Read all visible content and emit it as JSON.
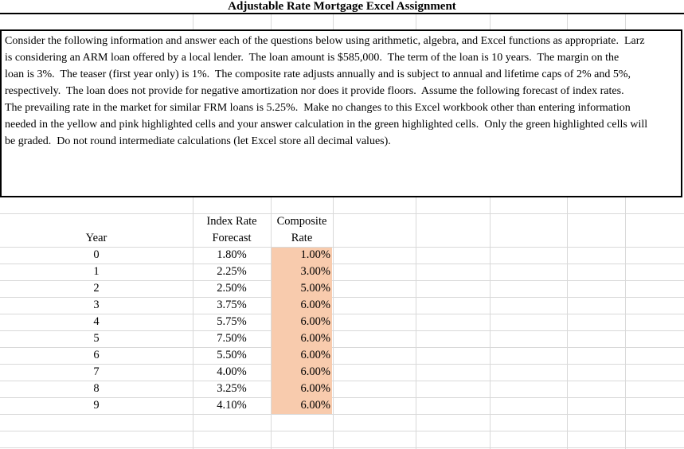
{
  "title": "Adjustable Rate Mortgage Excel Assignment",
  "instructions": {
    "lines": [
      "Consider the following information and answer each of the questions below using arithmetic, algebra, and Excel functions as appropriate.  Larz",
      "is considering an ARM loan offered by a local lender.  The loan amount is $585,000.  The term of the loan is 10 years.  The margin on the",
      "loan is 3%.  The teaser (first year only) is 1%.  The composite rate adjusts annually and is subject to annual and lifetime caps of 2% and 5%,",
      "respectively.  The loan does not provide for negative amortization nor does it provide floors.  Assume the following forecast of index rates.",
      "The prevailing rate in the market for similar FRM loans is 5.25%.  Make no changes to this Excel workbook other than entering information",
      "needed in the yellow and pink highlighted cells and your answer calculation in the green highlighted cells.  Only the green highlighted cells will",
      "be graded.  Do not round intermediate calculations (let Excel store all decimal values)."
    ]
  },
  "table": {
    "headers": {
      "year": "Year",
      "index_rate_line1": "Index Rate",
      "index_rate_line2": "Forecast",
      "composite_line1": "Composite",
      "composite_line2": "Rate"
    },
    "rows": [
      {
        "year": "0",
        "index_rate": "1.80%",
        "composite_rate": "1.00%"
      },
      {
        "year": "1",
        "index_rate": "2.25%",
        "composite_rate": "3.00%"
      },
      {
        "year": "2",
        "index_rate": "2.50%",
        "composite_rate": "5.00%"
      },
      {
        "year": "3",
        "index_rate": "3.75%",
        "composite_rate": "6.00%"
      },
      {
        "year": "4",
        "index_rate": "5.75%",
        "composite_rate": "6.00%"
      },
      {
        "year": "5",
        "index_rate": "7.50%",
        "composite_rate": "6.00%"
      },
      {
        "year": "6",
        "index_rate": "5.50%",
        "composite_rate": "6.00%"
      },
      {
        "year": "7",
        "index_rate": "4.00%",
        "composite_rate": "6.00%"
      },
      {
        "year": "8",
        "index_rate": "3.25%",
        "composite_rate": "6.00%"
      },
      {
        "year": "9",
        "index_rate": "4.10%",
        "composite_rate": "6.00%"
      }
    ]
  },
  "colors": {
    "highlight_fill": "#F8CBAD",
    "gridline": "#D9D9D9",
    "border": "#000000",
    "text": "#000000"
  }
}
